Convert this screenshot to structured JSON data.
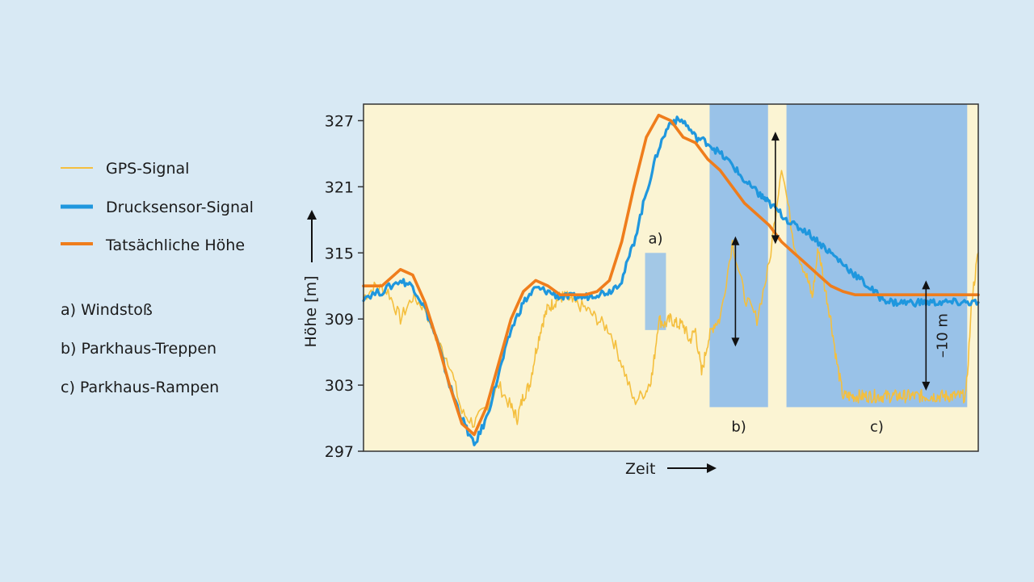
{
  "chart_data": {
    "type": "line",
    "xlabel": "Zeit",
    "ylabel": "Höhe [m]",
    "yticks": [
      297,
      303,
      309,
      315,
      321,
      327
    ],
    "ylim": [
      297,
      328.5
    ],
    "xlim": [
      0,
      100
    ],
    "grid": false,
    "legend_position": "left",
    "colors": {
      "plot_background": "#fbf4d3",
      "region": "#93bfe9",
      "gps": "#f4bf3e",
      "pressure": "#1f97de",
      "actual": "#ef7d1c"
    },
    "series": [
      {
        "name": "GPS-Signal",
        "x": [
          0,
          2,
          4,
          6,
          8,
          10,
          12,
          14,
          16,
          18,
          20,
          22,
          24,
          25,
          26,
          27,
          28,
          29,
          30,
          31,
          32,
          33,
          34,
          36,
          38,
          40,
          42,
          44,
          46,
          47,
          48,
          49,
          50,
          51,
          52,
          53,
          54,
          55,
          56,
          57,
          58,
          60,
          62,
          64,
          66,
          68,
          70,
          72,
          73,
          74,
          75,
          76,
          77,
          78,
          79,
          80,
          81,
          82,
          83,
          84,
          85,
          86,
          87,
          88,
          89,
          90,
          91,
          92,
          93,
          94,
          95,
          96,
          97,
          98,
          99,
          100
        ],
        "values": [
          311,
          312,
          311.5,
          309,
          311,
          310,
          307,
          305,
          300.5,
          299.5,
          301,
          303,
          301,
          300,
          302,
          303,
          306,
          308.5,
          310,
          310.5,
          311,
          311,
          310.5,
          310,
          309,
          308,
          305,
          301.5,
          302.5,
          304,
          309,
          308.5,
          309,
          308.5,
          308.5,
          307,
          308,
          304,
          307,
          308.5,
          309,
          316,
          311,
          309,
          314,
          323,
          316,
          313,
          311,
          315.5,
          312,
          309,
          305,
          302,
          302,
          302,
          302,
          302,
          302,
          302,
          302,
          302,
          302,
          302,
          302,
          302,
          302,
          302,
          302,
          302,
          302,
          302,
          302,
          302,
          311,
          315
        ]
      },
      {
        "name": "Drucksensor-Signal",
        "x": [
          0,
          3,
          6,
          8,
          10,
          12,
          14,
          16,
          18,
          20,
          22,
          24,
          26,
          28,
          30,
          32,
          34,
          36,
          38,
          40,
          42,
          44,
          46,
          48,
          50,
          52,
          54,
          56,
          58,
          60,
          62,
          64,
          65,
          66,
          68,
          70,
          72,
          74,
          76,
          78,
          80,
          82,
          84,
          86,
          88,
          90,
          92,
          94,
          96,
          98,
          100
        ],
        "values": [
          311,
          311.5,
          312.5,
          312,
          310,
          307,
          303,
          300,
          297.5,
          300,
          304,
          308,
          310.5,
          311.8,
          311.5,
          311,
          311,
          311,
          311.3,
          311.5,
          312.5,
          316,
          320.5,
          324.5,
          327,
          327,
          325.5,
          325,
          324,
          323,
          321.5,
          320.5,
          320,
          319.5,
          318.5,
          317.5,
          317,
          316,
          315,
          314,
          313,
          312,
          311,
          310.5,
          310.5,
          310.5,
          310.5,
          310.5,
          310.5,
          310.5,
          310.5
        ]
      },
      {
        "name": "Tatsächliche Höhe",
        "x": [
          0,
          3,
          6,
          8,
          10,
          12,
          14,
          16,
          18,
          20,
          22,
          24,
          26,
          28,
          30,
          32,
          34,
          36,
          38,
          40,
          42,
          44,
          46,
          48,
          50,
          52,
          54,
          56,
          58,
          60,
          62,
          64,
          66,
          68,
          70,
          72,
          74,
          76,
          78,
          80,
          82,
          84,
          86,
          88,
          90,
          92,
          94,
          96,
          98,
          100
        ],
        "values": [
          312,
          312,
          313.5,
          313,
          310.5,
          307,
          303,
          299.5,
          298.5,
          301,
          305,
          309,
          311.5,
          312.5,
          312,
          311.2,
          311.2,
          311.2,
          311.5,
          312.5,
          316,
          321,
          325.5,
          327.5,
          327,
          325.5,
          325,
          323.5,
          322.5,
          321,
          319.5,
          318.5,
          317.5,
          316,
          315,
          314,
          313,
          312,
          311.5,
          311.2,
          311.2,
          311.2,
          311.2,
          311.2,
          311.2,
          311.2,
          311.2,
          311.2,
          311.2,
          311.2
        ]
      }
    ],
    "regions": [
      {
        "label": "a)",
        "x0": 45.8,
        "x1": 49.2,
        "y0": 308,
        "y1": 315
      },
      {
        "label": "b)",
        "x0": 56.3,
        "x1": 65.8,
        "y0": 301,
        "y1": 328.5
      },
      {
        "label": "c)",
        "x0": 68.8,
        "x1": 98.2,
        "y0": 301,
        "y1": 328.5
      }
    ],
    "annotations": [
      {
        "text": "–10 m",
        "x": 91.5,
        "y0": 302.5,
        "y1": 312.5
      }
    ],
    "notes": [
      {
        "label": "a) Windstoß"
      },
      {
        "label": "b) Parkhaus-Treppen"
      },
      {
        "label": "c) Parkhaus-Rampen"
      }
    ]
  }
}
